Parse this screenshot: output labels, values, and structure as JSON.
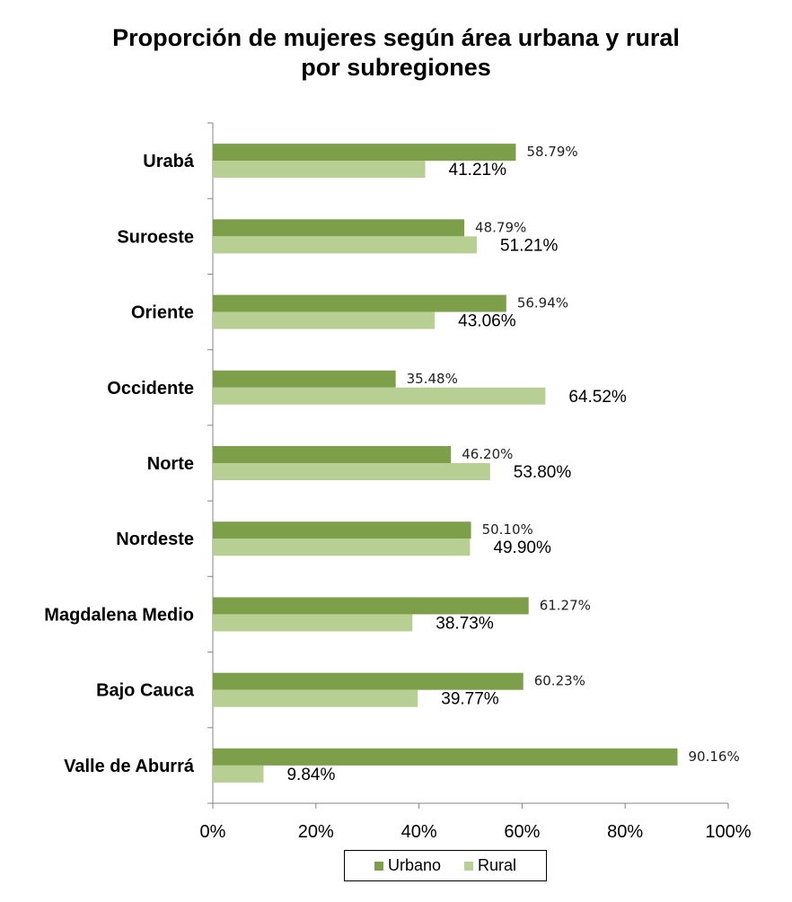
{
  "chart_data": {
    "type": "bar",
    "orientation": "horizontal",
    "title": "Proporción de mujeres según área urbana y rural por subregiones",
    "title_lines": [
      "Proporción de mujeres según área urbana y rural",
      "por subregiones"
    ],
    "categories": [
      "Urabá",
      "Suroeste",
      "Oriente",
      "Occidente",
      "Norte",
      "Nordeste",
      "Magdalena Medio",
      "Bajo Cauca",
      "Valle de Aburrá"
    ],
    "series": [
      {
        "name": "Urbano",
        "color": "#7E9F49",
        "values": [
          58.79,
          48.79,
          56.94,
          35.48,
          46.2,
          50.1,
          61.27,
          60.23,
          90.16
        ],
        "labels": [
          "58.79%",
          "48.79%",
          "56.94%",
          "35.48%",
          "46.20%",
          "50.10%",
          "61.27%",
          "60.23%",
          "90.16%"
        ]
      },
      {
        "name": "Rural",
        "color": "#B8CF93",
        "values": [
          41.21,
          51.21,
          43.06,
          64.52,
          53.8,
          49.9,
          38.73,
          39.77,
          9.84
        ],
        "labels": [
          "41.21%",
          "51.21%",
          "43.06%",
          "64.52%",
          "53.80%",
          "49.90%",
          "38.73%",
          "39.77%",
          "9.84%"
        ]
      }
    ],
    "xlim": [
      0,
      100
    ],
    "x_ticks": [
      0,
      20,
      40,
      60,
      80,
      100
    ],
    "x_tick_labels": [
      "0%",
      "20%",
      "40%",
      "60%",
      "80%",
      "100%"
    ],
    "xlabel": "",
    "ylabel": "",
    "grid": false,
    "legend_position": "bottom"
  }
}
